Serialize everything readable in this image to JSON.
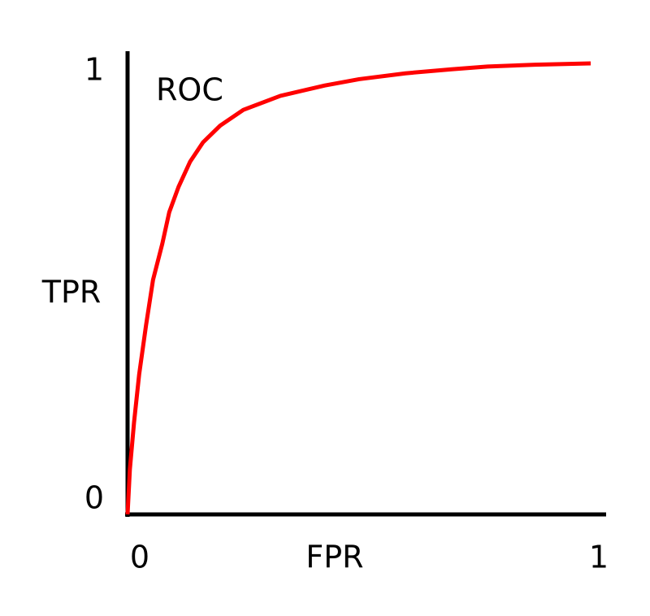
{
  "chart_data": {
    "type": "line",
    "x_label": "FPR",
    "y_label": "TPR",
    "xlim": [
      0,
      1
    ],
    "ylim": [
      0,
      1
    ],
    "xticks": [
      0,
      1
    ],
    "yticks": [
      0,
      1
    ],
    "x": [
      0,
      0.005,
      0.014,
      0.025,
      0.04,
      0.055,
      0.075,
      0.09,
      0.11,
      0.135,
      0.163,
      0.2,
      0.25,
      0.33,
      0.426,
      0.5,
      0.6,
      0.7,
      0.777,
      0.88,
      1
    ],
    "series": [
      {
        "name": "ROC",
        "color": "#ff0000",
        "values": [
          0,
          0.1,
          0.204,
          0.31,
          0.42,
          0.52,
          0.6,
          0.67,
          0.726,
          0.782,
          0.825,
          0.862,
          0.897,
          0.928,
          0.951,
          0.965,
          0.978,
          0.987,
          0.993,
          0.997,
          1
        ]
      }
    ]
  }
}
